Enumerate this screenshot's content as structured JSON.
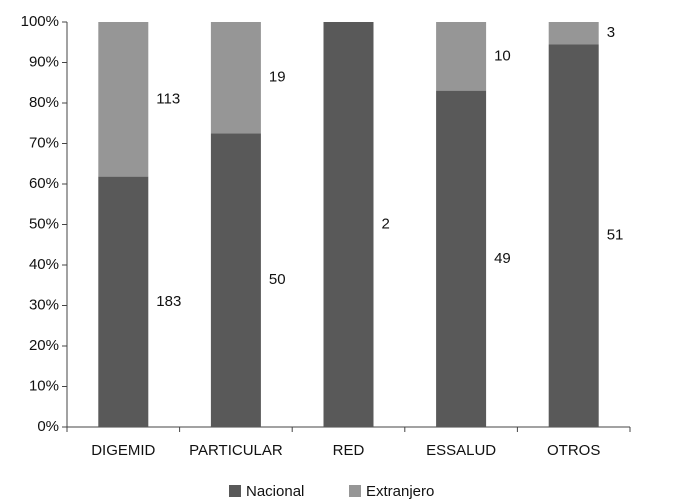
{
  "chart_data": {
    "type": "stacked_percent_bar",
    "categories": [
      "DIGEMID",
      "PARTICULAR",
      "RED",
      "ESSALUD",
      "OTROS"
    ],
    "series": [
      {
        "name": "Nacional",
        "color": "#595959",
        "values": [
          183,
          50,
          2,
          49,
          51
        ]
      },
      {
        "name": "Extranjero",
        "color": "#969696",
        "values": [
          113,
          19,
          null,
          10,
          3
        ]
      }
    ],
    "ylim": [
      0,
      100
    ],
    "yticks": [
      {
        "value": 0,
        "label": "0%"
      },
      {
        "value": 10,
        "label": "10%"
      },
      {
        "value": 20,
        "label": "20%"
      },
      {
        "value": 30,
        "label": "30%"
      },
      {
        "value": 40,
        "label": "40%"
      },
      {
        "value": 50,
        "label": "50%"
      },
      {
        "value": 60,
        "label": "60%"
      },
      {
        "value": 70,
        "label": "70%"
      },
      {
        "value": 80,
        "label": "80%"
      },
      {
        "value": 90,
        "label": "90%"
      },
      {
        "value": 100,
        "label": "100%"
      }
    ],
    "legend": "bottom"
  }
}
